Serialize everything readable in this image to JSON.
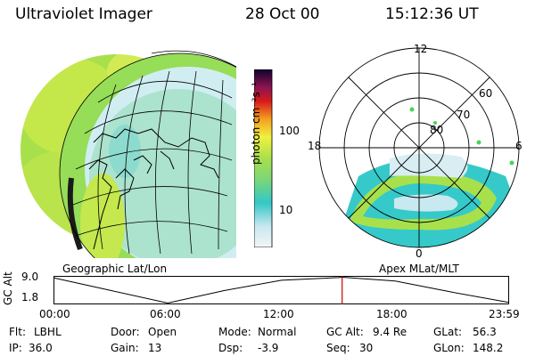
{
  "header": {
    "instrument": "Ultraviolet Imager",
    "date": "28 Oct 00",
    "time": "15:12:36 UT"
  },
  "left_panel": {
    "label": "Geographic Lat/Lon"
  },
  "right_panel": {
    "label": "Apex MLat/MLT",
    "mlt_labels": [
      "12",
      "18",
      "6",
      "0"
    ],
    "mlat_labels": [
      "60",
      "70",
      "80"
    ]
  },
  "colorbar": {
    "unit_label": "photon cm⁻²s⁻¹",
    "tick_labels": [
      "100",
      "10"
    ]
  },
  "altitude_plot": {
    "ylabel": "GC Alt",
    "ytick_labels": [
      "9.0",
      "1.8"
    ],
    "xtick_labels": [
      "00:00",
      "06:00",
      "12:00",
      "18:00",
      "23:59"
    ]
  },
  "chart_data": {
    "type": "line",
    "ylabel": "GC Alt",
    "yticks": [
      1.8,
      9.0
    ],
    "ylim": [
      1.8,
      9.4
    ],
    "xlim": [
      "00:00",
      "23:59"
    ],
    "x": [
      "00:00",
      "03:00",
      "06:00",
      "09:00",
      "12:00",
      "15:00",
      "15:12",
      "18:00",
      "21:00",
      "23:59"
    ],
    "y": [
      9.2,
      5.5,
      1.8,
      5.5,
      8.5,
      9.3,
      9.4,
      8.3,
      5.0,
      2.0
    ],
    "marker_time": "15:12"
  },
  "info": {
    "flt_label": "Flt:",
    "flt_value": "LBHL",
    "ip_label": "IP:",
    "ip_value": "36.0",
    "door_label": "Door:",
    "door_value": "Open",
    "gain_label": "Gain:",
    "gain_value": "13",
    "mode_label": "Mode:",
    "mode_value": "Normal",
    "dsp_label": "Dsp:",
    "dsp_value": "-3.9",
    "gcalt_label": "GC Alt:",
    "gcalt_value": "9.4 Re",
    "seq_label": "Seq:",
    "seq_value": "30",
    "glat_label": "GLat:",
    "glat_value": "56.3",
    "glon_label": "GLon:",
    "glon_value": "148.2"
  },
  "colors": {
    "background": "#ffffff",
    "trace": "#000000",
    "marker": "#cc0000",
    "bright": "#9be04a",
    "mid": "#33c7c7",
    "dim": "#c8e9f0"
  }
}
